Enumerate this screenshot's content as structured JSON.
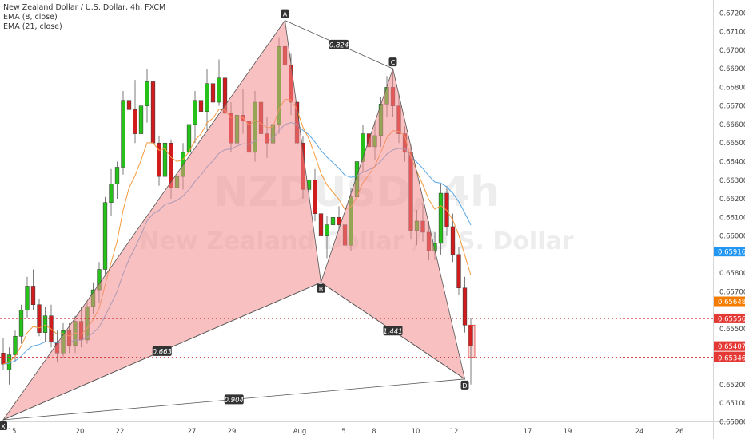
{
  "chart_data": {
    "type": "candlestick",
    "legend": {
      "title": "New Zealand Dollar / U.S. Dollar, 4h, FXCM",
      "ema8": "EMA (8, close)",
      "ema21": "EMA (21, close)"
    },
    "watermark": {
      "symbol": "NZDUSD, 4h",
      "name": "New Zealand Dollar / U.S. Dollar"
    },
    "ylim": [
      0.6495,
      0.6727
    ],
    "y_ticks": [
      "0.67200",
      "0.67100",
      "0.67000",
      "0.66900",
      "0.66800",
      "0.66700",
      "0.66600",
      "0.66500",
      "0.66400",
      "0.66300",
      "0.66200",
      "0.66100",
      "0.66000",
      "0.65800",
      "0.65700",
      "0.65500",
      "0.65200",
      "0.65100",
      "0.65000"
    ],
    "x_ticks": [
      "15",
      "20",
      "22",
      "27",
      "29",
      "Aug",
      "5",
      "8",
      "10",
      "12",
      "17",
      "19",
      "24",
      "26"
    ],
    "price_labels": [
      {
        "value": "0.65916",
        "color": "#2196f3"
      },
      {
        "value": "0.65648",
        "color": "#f57c00"
      },
      {
        "value": "0.65556",
        "color": "#e53935"
      },
      {
        "value": "0.65407",
        "color": "#e53935"
      },
      {
        "value": "03:54:23",
        "color": "#e53935"
      },
      {
        "value": "0.65346",
        "color": "#e53935"
      }
    ],
    "harmonic": {
      "points": [
        {
          "label": "X",
          "price": 0.6501
        },
        {
          "label": "A",
          "price": 0.6716
        },
        {
          "label": "B",
          "price": 0.6575
        },
        {
          "label": "C",
          "price": 0.669
        },
        {
          "label": "D",
          "price": 0.6523
        }
      ],
      "ratios": [
        "0.824",
        "0.663",
        "1.441",
        "0.904"
      ]
    },
    "horizontal_levels": [
      0.65556,
      0.65407,
      0.65346
    ],
    "candles": [
      {
        "o": 0.6537,
        "h": 0.6545,
        "l": 0.6528,
        "c": 0.6531
      },
      {
        "o": 0.6528,
        "h": 0.654,
        "l": 0.652,
        "c": 0.6536
      },
      {
        "o": 0.6536,
        "h": 0.6549,
        "l": 0.6532,
        "c": 0.6546
      },
      {
        "o": 0.6546,
        "h": 0.6563,
        "l": 0.6542,
        "c": 0.656
      },
      {
        "o": 0.656,
        "h": 0.6578,
        "l": 0.6556,
        "c": 0.6573
      },
      {
        "o": 0.6573,
        "h": 0.6582,
        "l": 0.656,
        "c": 0.6563
      },
      {
        "o": 0.6563,
        "h": 0.6566,
        "l": 0.6546,
        "c": 0.6548
      },
      {
        "o": 0.6548,
        "h": 0.6562,
        "l": 0.6543,
        "c": 0.6557
      },
      {
        "o": 0.6557,
        "h": 0.6563,
        "l": 0.654,
        "c": 0.6543
      },
      {
        "o": 0.6543,
        "h": 0.6549,
        "l": 0.6532,
        "c": 0.6537
      },
      {
        "o": 0.6537,
        "h": 0.6553,
        "l": 0.6534,
        "c": 0.6549
      },
      {
        "o": 0.6549,
        "h": 0.6553,
        "l": 0.6537,
        "c": 0.6541
      },
      {
        "o": 0.6541,
        "h": 0.6557,
        "l": 0.6537,
        "c": 0.6554
      },
      {
        "o": 0.6554,
        "h": 0.6562,
        "l": 0.654,
        "c": 0.6544
      },
      {
        "o": 0.6544,
        "h": 0.6565,
        "l": 0.6542,
        "c": 0.6562
      },
      {
        "o": 0.6562,
        "h": 0.6575,
        "l": 0.6558,
        "c": 0.6571
      },
      {
        "o": 0.6571,
        "h": 0.6586,
        "l": 0.6564,
        "c": 0.6582
      },
      {
        "o": 0.6582,
        "h": 0.6621,
        "l": 0.6579,
        "c": 0.6618
      },
      {
        "o": 0.6618,
        "h": 0.6636,
        "l": 0.6611,
        "c": 0.6628
      },
      {
        "o": 0.6628,
        "h": 0.664,
        "l": 0.662,
        "c": 0.6637
      },
      {
        "o": 0.6637,
        "h": 0.6678,
        "l": 0.6633,
        "c": 0.6673
      },
      {
        "o": 0.6673,
        "h": 0.669,
        "l": 0.6658,
        "c": 0.6668
      },
      {
        "o": 0.6668,
        "h": 0.6684,
        "l": 0.665,
        "c": 0.6655
      },
      {
        "o": 0.6655,
        "h": 0.6676,
        "l": 0.665,
        "c": 0.667
      },
      {
        "o": 0.667,
        "h": 0.669,
        "l": 0.6661,
        "c": 0.6683
      },
      {
        "o": 0.6683,
        "h": 0.6686,
        "l": 0.6645,
        "c": 0.665
      },
      {
        "o": 0.665,
        "h": 0.6654,
        "l": 0.6627,
        "c": 0.6632
      },
      {
        "o": 0.6632,
        "h": 0.6655,
        "l": 0.6626,
        "c": 0.665
      },
      {
        "o": 0.665,
        "h": 0.6652,
        "l": 0.662,
        "c": 0.6626
      },
      {
        "o": 0.6626,
        "h": 0.6636,
        "l": 0.662,
        "c": 0.6632
      },
      {
        "o": 0.6632,
        "h": 0.665,
        "l": 0.6625,
        "c": 0.6645
      },
      {
        "o": 0.6645,
        "h": 0.6665,
        "l": 0.6636,
        "c": 0.666
      },
      {
        "o": 0.666,
        "h": 0.6678,
        "l": 0.665,
        "c": 0.6673
      },
      {
        "o": 0.6673,
        "h": 0.6687,
        "l": 0.6662,
        "c": 0.6667
      },
      {
        "o": 0.6667,
        "h": 0.669,
        "l": 0.6657,
        "c": 0.6682
      },
      {
        "o": 0.6682,
        "h": 0.6685,
        "l": 0.6668,
        "c": 0.6672
      },
      {
        "o": 0.6672,
        "h": 0.6695,
        "l": 0.667,
        "c": 0.6685
      },
      {
        "o": 0.6685,
        "h": 0.6689,
        "l": 0.666,
        "c": 0.6666
      },
      {
        "o": 0.6666,
        "h": 0.6672,
        "l": 0.6645,
        "c": 0.665
      },
      {
        "o": 0.665,
        "h": 0.6676,
        "l": 0.6644,
        "c": 0.6665
      },
      {
        "o": 0.6665,
        "h": 0.6679,
        "l": 0.6655,
        "c": 0.6662
      },
      {
        "o": 0.6662,
        "h": 0.667,
        "l": 0.664,
        "c": 0.6645
      },
      {
        "o": 0.6645,
        "h": 0.6678,
        "l": 0.664,
        "c": 0.6672
      },
      {
        "o": 0.6672,
        "h": 0.668,
        "l": 0.6648,
        "c": 0.6655
      },
      {
        "o": 0.6655,
        "h": 0.6664,
        "l": 0.6642,
        "c": 0.665
      },
      {
        "o": 0.665,
        "h": 0.6665,
        "l": 0.6645,
        "c": 0.666
      },
      {
        "o": 0.666,
        "h": 0.6707,
        "l": 0.6655,
        "c": 0.6702
      },
      {
        "o": 0.6702,
        "h": 0.6716,
        "l": 0.6685,
        "c": 0.6692
      },
      {
        "o": 0.6692,
        "h": 0.6698,
        "l": 0.6665,
        "c": 0.6672
      },
      {
        "o": 0.6672,
        "h": 0.6676,
        "l": 0.6645,
        "c": 0.665
      },
      {
        "o": 0.665,
        "h": 0.6654,
        "l": 0.662,
        "c": 0.6625
      },
      {
        "o": 0.6625,
        "h": 0.6637,
        "l": 0.6616,
        "c": 0.663
      },
      {
        "o": 0.663,
        "h": 0.6636,
        "l": 0.6608,
        "c": 0.6612
      },
      {
        "o": 0.6612,
        "h": 0.6617,
        "l": 0.6595,
        "c": 0.66
      },
      {
        "o": 0.66,
        "h": 0.6611,
        "l": 0.6588,
        "c": 0.6606
      },
      {
        "o": 0.6606,
        "h": 0.6616,
        "l": 0.66,
        "c": 0.661
      },
      {
        "o": 0.661,
        "h": 0.6616,
        "l": 0.6603,
        "c": 0.6606
      },
      {
        "o": 0.6606,
        "h": 0.6612,
        "l": 0.659,
        "c": 0.6595
      },
      {
        "o": 0.6595,
        "h": 0.6626,
        "l": 0.6592,
        "c": 0.6621
      },
      {
        "o": 0.6621,
        "h": 0.6645,
        "l": 0.6616,
        "c": 0.664
      },
      {
        "o": 0.664,
        "h": 0.666,
        "l": 0.6634,
        "c": 0.6655
      },
      {
        "o": 0.6655,
        "h": 0.6664,
        "l": 0.664,
        "c": 0.6648
      },
      {
        "o": 0.6648,
        "h": 0.6662,
        "l": 0.6641,
        "c": 0.6654
      },
      {
        "o": 0.6654,
        "h": 0.6675,
        "l": 0.6648,
        "c": 0.6671
      },
      {
        "o": 0.6671,
        "h": 0.6686,
        "l": 0.6664,
        "c": 0.668
      },
      {
        "o": 0.668,
        "h": 0.669,
        "l": 0.6664,
        "c": 0.667
      },
      {
        "o": 0.667,
        "h": 0.6676,
        "l": 0.665,
        "c": 0.6655
      },
      {
        "o": 0.6655,
        "h": 0.6659,
        "l": 0.664,
        "c": 0.6645
      },
      {
        "o": 0.6645,
        "h": 0.6649,
        "l": 0.6598,
        "c": 0.6603
      },
      {
        "o": 0.6603,
        "h": 0.6614,
        "l": 0.6595,
        "c": 0.6608
      },
      {
        "o": 0.6608,
        "h": 0.6618,
        "l": 0.6597,
        "c": 0.6602
      },
      {
        "o": 0.6602,
        "h": 0.6608,
        "l": 0.6587,
        "c": 0.6592
      },
      {
        "o": 0.6592,
        "h": 0.6602,
        "l": 0.6587,
        "c": 0.6596
      },
      {
        "o": 0.6596,
        "h": 0.6628,
        "l": 0.659,
        "c": 0.6623
      },
      {
        "o": 0.6623,
        "h": 0.6627,
        "l": 0.66,
        "c": 0.6605
      },
      {
        "o": 0.6605,
        "h": 0.6612,
        "l": 0.6586,
        "c": 0.659
      },
      {
        "o": 0.659,
        "h": 0.6594,
        "l": 0.6568,
        "c": 0.6572
      },
      {
        "o": 0.6572,
        "h": 0.6578,
        "l": 0.6548,
        "c": 0.6552
      },
      {
        "o": 0.6552,
        "h": 0.6556,
        "l": 0.652,
        "c": 0.6541
      }
    ]
  }
}
